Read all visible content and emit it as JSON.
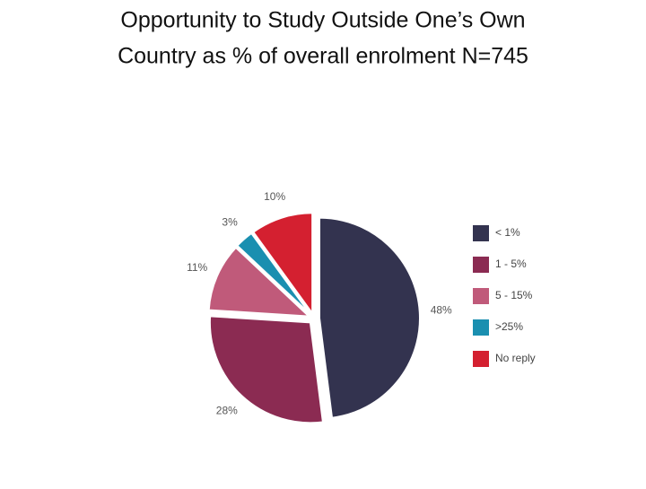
{
  "chart_data": {
    "type": "pie",
    "title": [
      "Opportunity to Study Outside One’s Own",
      "Country as % of overall enrolment N=745"
    ],
    "categories": [
      "< 1%",
      "1 - 5%",
      "5 - 15%",
      ">25%",
      "No reply"
    ],
    "values": [
      48,
      28,
      11,
      3,
      10
    ],
    "value_labels": [
      "48%",
      "28%",
      "11%",
      "3%",
      "10%"
    ],
    "colors": [
      "#33334f",
      "#8b2b52",
      "#c05a7a",
      "#1a8fb0",
      "#d42030"
    ],
    "legend": "right"
  }
}
